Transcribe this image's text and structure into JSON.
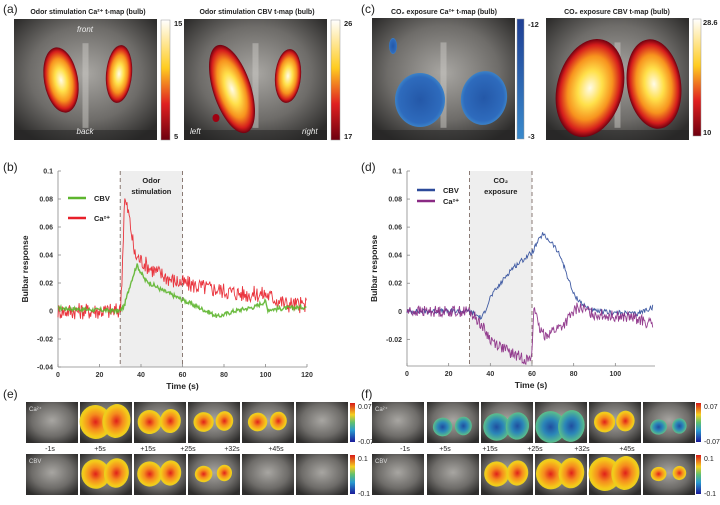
{
  "panels": {
    "a": {
      "label": "(a)",
      "maps": [
        {
          "title": "Odor stimulation Ca²⁺ t-map (bulb)",
          "cbar_max": "15",
          "cbar_min": "5",
          "cmap": "hot",
          "orient": [
            "front",
            "back"
          ]
        },
        {
          "title": "Odor stimulation CBV t-map (bulb)",
          "cbar_max": "26",
          "cbar_min": "17",
          "cmap": "hot",
          "orient": [
            "left",
            "right"
          ]
        }
      ]
    },
    "c": {
      "label": "(c)",
      "maps": [
        {
          "title": "CO₂ exposure Ca²⁺ t-map (bulb)",
          "cbar_max": "-12",
          "cbar_min": "-3",
          "cmap": "blue"
        },
        {
          "title": "CO₂ exposure CBV t-map (bulb)",
          "cbar_max": "28.6",
          "cbar_min": "10",
          "cmap": "hot"
        }
      ]
    },
    "b": {
      "label": "(b)"
    },
    "d": {
      "label": "(d)"
    },
    "e": {
      "label": "(e)",
      "row_labels": [
        "Ca²⁺",
        "CBV"
      ],
      "times": [
        "-1s",
        "+5s",
        "+15s",
        "+25s",
        "+32s",
        "+45s"
      ],
      "cbar": {
        "ca_max": "0.07",
        "ca_min": "-0.07",
        "cbv_max": "0.1",
        "cbv_min": "-0.1"
      },
      "ca_activation": [
        0,
        1,
        0.55,
        0.35,
        0.3,
        0
      ],
      "cbv_activation": [
        0,
        0.8,
        0.6,
        0.2,
        0,
        0
      ]
    },
    "f": {
      "label": "(f)",
      "row_labels": [
        "Ca²⁺",
        "CBV"
      ],
      "times": [
        "-1s",
        "+5s",
        "+15s",
        "+25s",
        "+32s",
        "+45s"
      ],
      "cbar": {
        "ca_max": "0.07",
        "ca_min": "-0.07",
        "cbv_max": "0.1",
        "cbv_min": "-0.1"
      },
      "ca_activation": [
        0,
        -0.3,
        -0.7,
        -0.9,
        0.4,
        -0.15
      ],
      "cbv_activation": [
        0,
        0,
        0.6,
        0.85,
        1,
        0.1
      ]
    }
  },
  "chart_data": [
    {
      "type": "line",
      "panel": "b",
      "xlabel": "Time (s)",
      "ylabel": "Bulbar response",
      "xlim": [
        0,
        120
      ],
      "ylim": [
        -0.04,
        0.1
      ],
      "xticks": [
        "0",
        "20",
        "40",
        "60",
        "80",
        "100",
        "120"
      ],
      "yticks": [
        "-0.04",
        "-0.02",
        "0",
        "0.02",
        "0.04",
        "0.06",
        "0.08",
        "0.1"
      ],
      "shaded": {
        "from": 30,
        "to": 60,
        "label_lines": [
          "Odor",
          "stimulation"
        ]
      },
      "legend": "top-left",
      "series": [
        {
          "name": "CBV",
          "color": "#5db52e",
          "noise": 0.0015,
          "points": [
            [
              0,
              0.002
            ],
            [
              30,
              0
            ],
            [
              32,
              0.004
            ],
            [
              35,
              0.02
            ],
            [
              38,
              0.033
            ],
            [
              42,
              0.022
            ],
            [
              50,
              0.015
            ],
            [
              60,
              0.008
            ],
            [
              70,
              0.001
            ],
            [
              77,
              -0.004
            ],
            [
              85,
              0
            ],
            [
              95,
              0.003
            ],
            [
              100,
              0.007
            ],
            [
              101,
              0.001
            ],
            [
              110,
              0.002
            ],
            [
              120,
              0.003
            ]
          ]
        },
        {
          "name": "Ca²⁺",
          "color": "#e8202a",
          "noise": 0.006,
          "points": [
            [
              0,
              0
            ],
            [
              30,
              0
            ],
            [
              31,
              0.03
            ],
            [
              32,
              0.08
            ],
            [
              34,
              0.07
            ],
            [
              37,
              0.04
            ],
            [
              45,
              0.03
            ],
            [
              55,
              0.022
            ],
            [
              60,
              0.02
            ],
            [
              70,
              0.017
            ],
            [
              90,
              0.012
            ],
            [
              100,
              0.012
            ],
            [
              110,
              0.005
            ],
            [
              120,
              0.004
            ]
          ]
        }
      ]
    },
    {
      "type": "line",
      "panel": "d",
      "xlabel": "Time (s)",
      "ylabel": "Bulbar response",
      "xlim": [
        0,
        120
      ],
      "ylim": [
        -0.039,
        0.1
      ],
      "xticks": [
        "0",
        "20",
        "40",
        "60",
        "80",
        "100"
      ],
      "yticks": [
        "-0.02",
        "0",
        "0.02",
        "0.04",
        "0.06",
        "0.08",
        "0.1"
      ],
      "shaded": {
        "from": 30,
        "to": 60,
        "label_lines": [
          "CO₂",
          "exposure"
        ]
      },
      "legend": "top-left",
      "series": [
        {
          "name": "CBV",
          "color": "#2c4a9a",
          "noise": 0.0018,
          "points": [
            [
              0,
              0
            ],
            [
              30,
              0
            ],
            [
              36,
              -0.005
            ],
            [
              40,
              0.01
            ],
            [
              50,
              0.03
            ],
            [
              60,
              0.042
            ],
            [
              65,
              0.055
            ],
            [
              70,
              0.048
            ],
            [
              74,
              0.038
            ],
            [
              80,
              0.012
            ],
            [
              85,
              0.004
            ],
            [
              90,
              0
            ],
            [
              110,
              -0.002
            ],
            [
              118,
              0.003
            ]
          ]
        },
        {
          "name": "Ca²⁺",
          "color": "#8a2a84",
          "noise": 0.004,
          "points": [
            [
              0,
              0
            ],
            [
              30,
              0
            ],
            [
              35,
              -0.008
            ],
            [
              40,
              -0.02
            ],
            [
              50,
              -0.03
            ],
            [
              59,
              -0.035
            ],
            [
              60,
              -0.03
            ],
            [
              61,
              0.007
            ],
            [
              63,
              -0.012
            ],
            [
              66,
              -0.017
            ],
            [
              75,
              -0.01
            ],
            [
              82,
              0.003
            ],
            [
              90,
              -0.002
            ],
            [
              110,
              -0.005
            ],
            [
              118,
              -0.01
            ]
          ]
        }
      ]
    }
  ]
}
